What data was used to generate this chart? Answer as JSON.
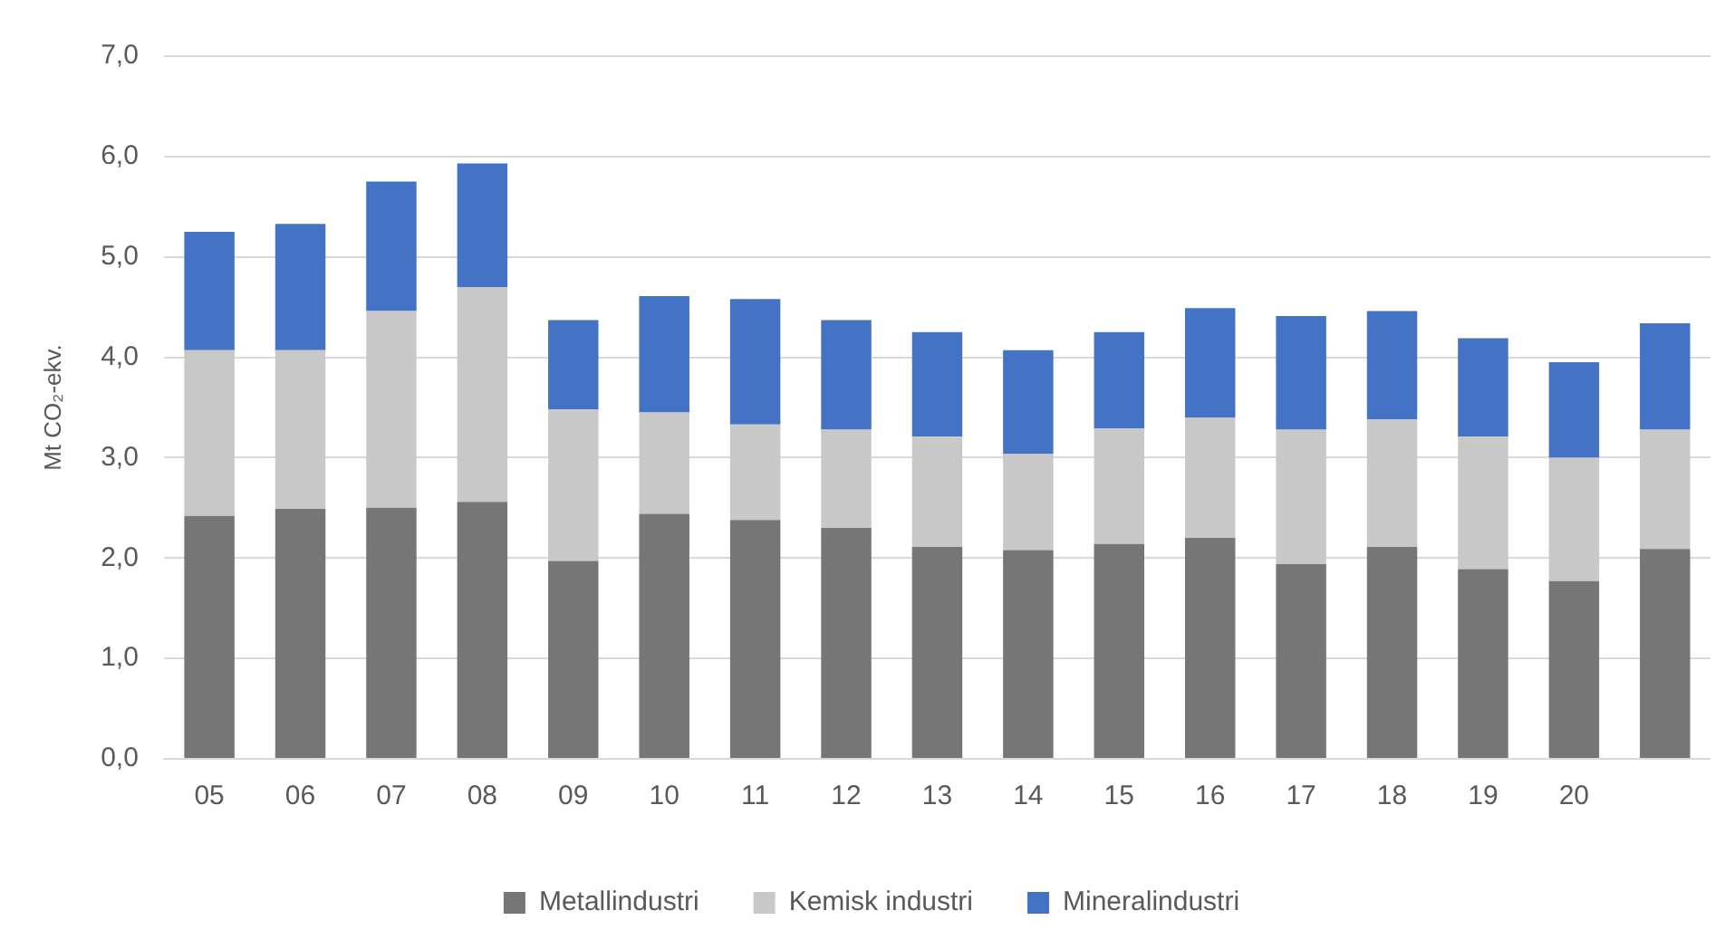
{
  "chart_data": {
    "type": "bar",
    "stacked": true,
    "ylabel": "Mt CO₂-ekv.",
    "categories": [
      "05",
      "06",
      "07",
      "08",
      "09",
      "10",
      "11",
      "12",
      "13",
      "14",
      "15",
      "16",
      "17",
      "18",
      "19",
      "20",
      null
    ],
    "series": [
      {
        "name": "Metallindustri",
        "color": "#767676",
        "values": [
          2.42,
          2.49,
          2.5,
          2.56,
          1.97,
          2.44,
          2.38,
          2.3,
          2.11,
          2.08,
          2.14,
          2.2,
          1.94,
          2.11,
          1.89,
          1.77,
          2.09
        ]
      },
      {
        "name": "Kemisk industri",
        "color": "#c8c8c8",
        "values": [
          1.65,
          1.58,
          1.96,
          2.14,
          1.51,
          1.01,
          0.95,
          0.98,
          1.1,
          0.96,
          1.15,
          1.2,
          1.34,
          1.27,
          1.32,
          1.23,
          1.19
        ]
      },
      {
        "name": "Mineralindustri",
        "color": "#4472c4",
        "values": [
          1.18,
          1.26,
          1.29,
          1.23,
          0.89,
          1.16,
          1.25,
          1.09,
          1.04,
          1.03,
          0.96,
          1.09,
          1.13,
          1.08,
          0.98,
          0.95,
          1.06
        ]
      }
    ],
    "ylim": [
      0,
      7
    ],
    "yticks": [
      {
        "value": 0,
        "label": "0,0"
      },
      {
        "value": 1,
        "label": "1,0"
      },
      {
        "value": 2,
        "label": "2,0"
      },
      {
        "value": 3,
        "label": "3,0"
      },
      {
        "value": 4,
        "label": "4,0"
      },
      {
        "value": 5,
        "label": "5,0"
      },
      {
        "value": 6,
        "label": "6,0"
      },
      {
        "value": 7,
        "label": "7,0"
      }
    ],
    "grid": "y",
    "legend": "bottom"
  }
}
